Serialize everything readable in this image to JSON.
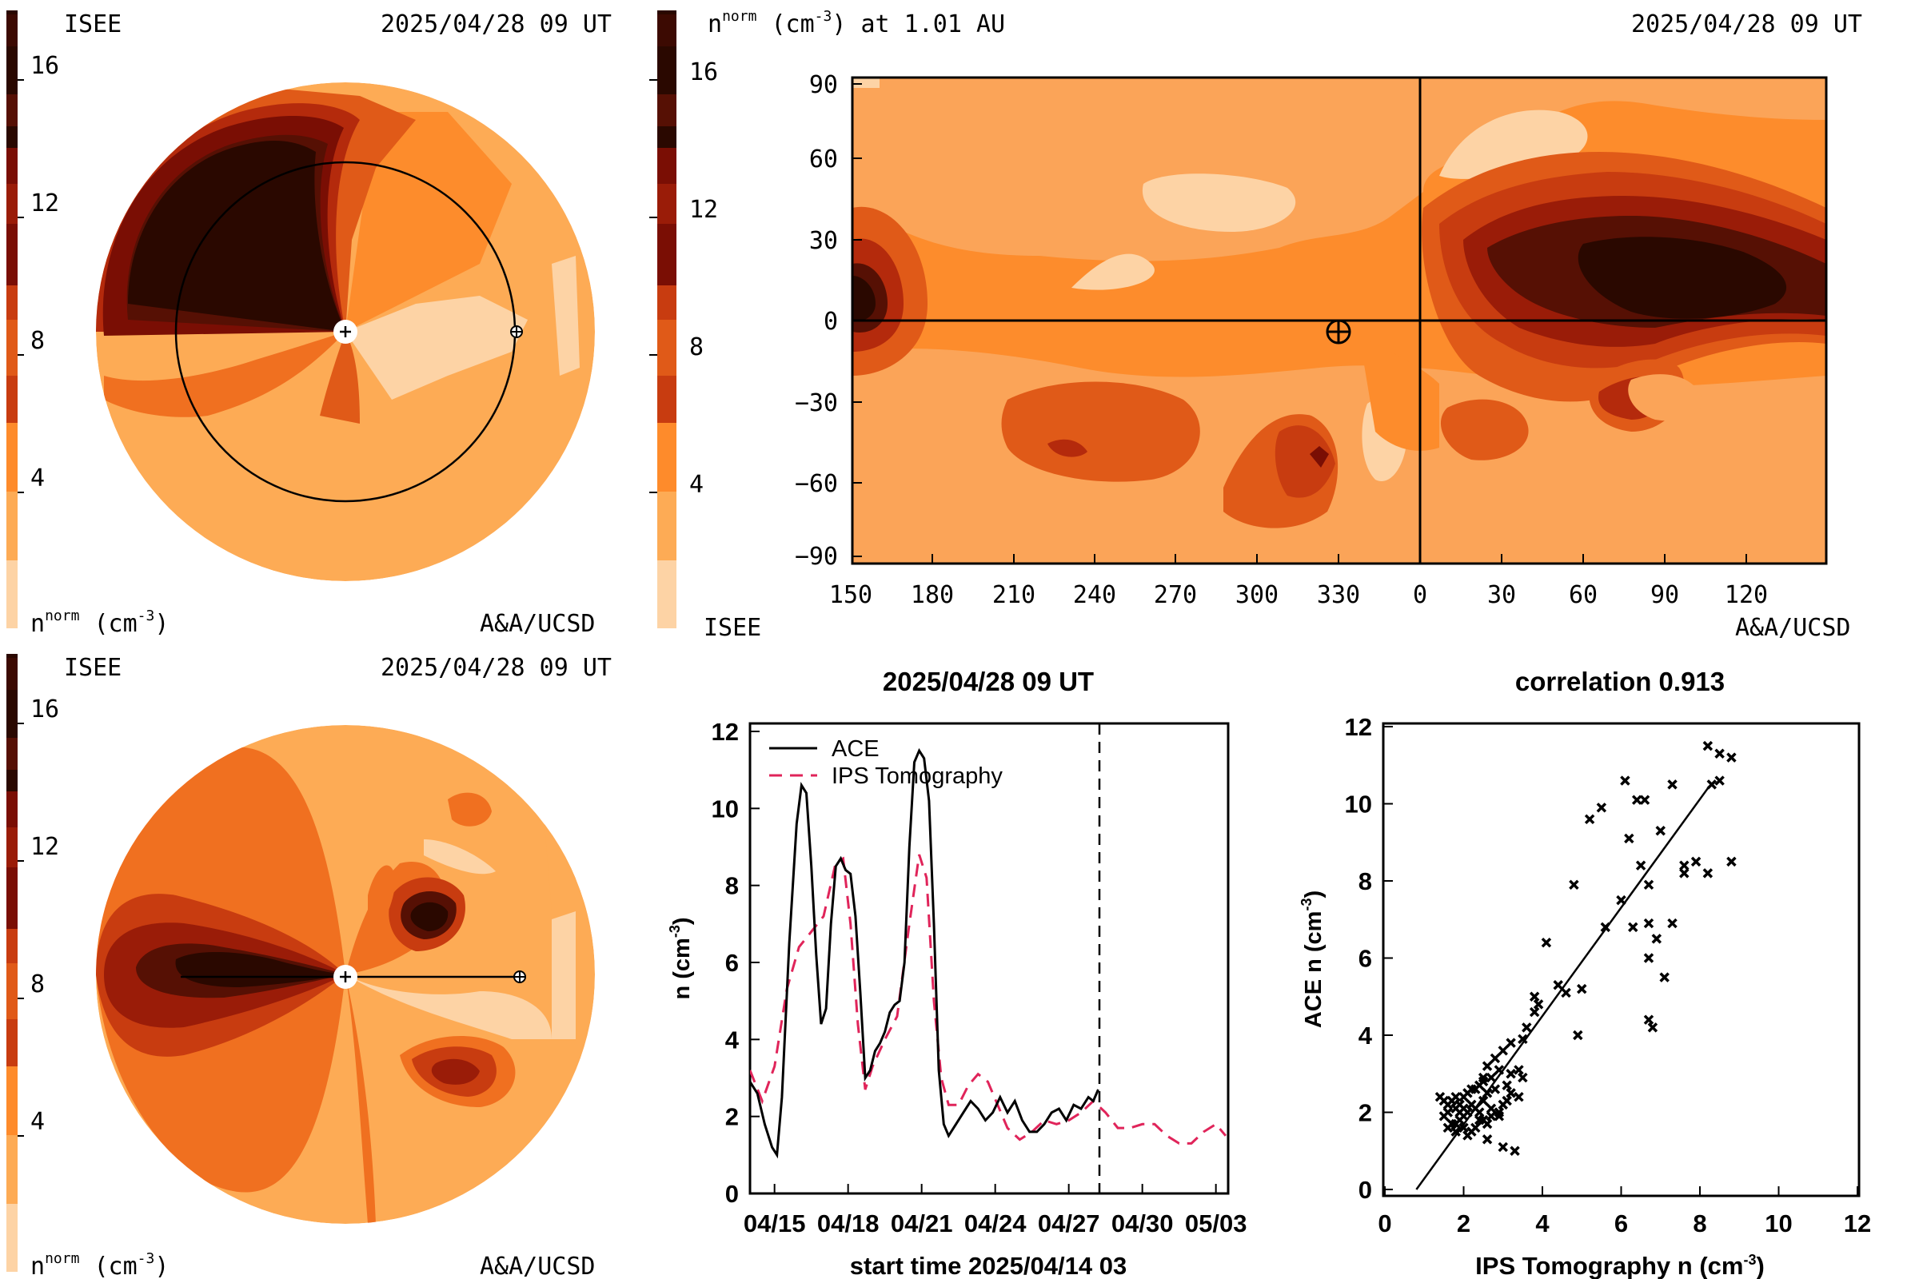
{
  "colors": {
    "scale": [
      "#fdd3a5",
      "#fdab55",
      "#fe9b38",
      "#fe8b2b",
      "#f07020",
      "#e05a18",
      "#c83c10",
      "#b42a0c",
      "#9a1c08",
      "#7a0e04",
      "#561004",
      "#3c0a02",
      "#2a0800"
    ],
    "pale": "#fdd3a5",
    "light": "#fba458",
    "mid": "#fd8c2c",
    "sun": "#ffffff",
    "ace_line": "#000000",
    "ips_line": "#e0245a"
  },
  "panels": {
    "ecliptic": {
      "org_label": "ISEE",
      "timestamp": "2025/04/28 09 UT",
      "colorbar_ticks": [
        "16",
        "12",
        "8",
        "4"
      ],
      "unit_prefix": "n",
      "unit_sup": "norm",
      "unit_suffix": " (cm",
      "unit_exp": "-3",
      "unit_close": ")",
      "credit": "A&A/UCSD"
    },
    "map": {
      "header_prefix": "n",
      "header_sup": "norm",
      "header_mid": " (cm",
      "header_exp": "-3",
      "header_suffix": ") at 1.01 AU",
      "timestamp": "2025/04/28 09 UT",
      "colorbar_ticks": [
        "16",
        "12",
        "8",
        "4"
      ],
      "y_ticks": [
        "90",
        "60",
        "30",
        "0",
        "−30",
        "−60",
        "−90"
      ],
      "x_ticks": [
        "150",
        "180",
        "210",
        "240",
        "270",
        "300",
        "330",
        "0",
        "30",
        "60",
        "90",
        "120"
      ],
      "org_label": "ISEE",
      "credit": "A&A/UCSD"
    },
    "meridional": {
      "org_label": "ISEE",
      "timestamp": "2025/04/28 09 UT",
      "colorbar_ticks": [
        "16",
        "12",
        "8",
        "4"
      ],
      "unit_prefix": "n",
      "unit_sup": "norm",
      "unit_suffix": " (cm",
      "unit_exp": "-3",
      "unit_close": ")",
      "credit": "A&A/UCSD"
    }
  },
  "chart_data": [
    {
      "type": "line",
      "title": "2025/04/28 09 UT",
      "xlabel": "start time 2025/04/14 03",
      "ylabel_prefix": "n (cm",
      "ylabel_exp": "-3",
      "ylabel_suffix": ")",
      "x_tick_labels": [
        "04/15",
        "04/18",
        "04/21",
        "04/24",
        "04/27",
        "04/30",
        "05/03"
      ],
      "x_tick_days": [
        1,
        4,
        7,
        10,
        13,
        16,
        19
      ],
      "xlim_days": [
        0,
        19.5
      ],
      "ylim": [
        0,
        12
      ],
      "y_ticks": [
        0,
        2,
        4,
        6,
        8,
        10,
        12
      ],
      "now_marker_day": 14.25,
      "series": [
        {
          "name": "ACE",
          "style": "solid",
          "points": [
            [
              0.0,
              2.9
            ],
            [
              0.3,
              2.6
            ],
            [
              0.6,
              1.8
            ],
            [
              0.9,
              1.2
            ],
            [
              1.1,
              1.0
            ],
            [
              1.3,
              2.5
            ],
            [
              1.6,
              6.5
            ],
            [
              1.9,
              9.6
            ],
            [
              2.1,
              10.6
            ],
            [
              2.3,
              10.4
            ],
            [
              2.5,
              8.5
            ],
            [
              2.7,
              6.2
            ],
            [
              2.9,
              4.4
            ],
            [
              3.1,
              4.8
            ],
            [
              3.3,
              7.0
            ],
            [
              3.5,
              8.5
            ],
            [
              3.7,
              8.7
            ],
            [
              3.9,
              8.4
            ],
            [
              4.1,
              8.3
            ],
            [
              4.3,
              7.2
            ],
            [
              4.5,
              5.2
            ],
            [
              4.7,
              3.0
            ],
            [
              4.9,
              3.2
            ],
            [
              5.1,
              3.7
            ],
            [
              5.3,
              3.9
            ],
            [
              5.5,
              4.2
            ],
            [
              5.7,
              4.7
            ],
            [
              5.9,
              4.9
            ],
            [
              6.1,
              5.0
            ],
            [
              6.3,
              6.0
            ],
            [
              6.5,
              9.0
            ],
            [
              6.7,
              11.2
            ],
            [
              6.9,
              11.5
            ],
            [
              7.1,
              11.3
            ],
            [
              7.3,
              10.2
            ],
            [
              7.5,
              7.0
            ],
            [
              7.7,
              3.2
            ],
            [
              7.9,
              1.8
            ],
            [
              8.1,
              1.5
            ],
            [
              8.4,
              1.8
            ],
            [
              8.7,
              2.1
            ],
            [
              9.0,
              2.4
            ],
            [
              9.3,
              2.2
            ],
            [
              9.6,
              1.9
            ],
            [
              9.9,
              2.1
            ],
            [
              10.2,
              2.5
            ],
            [
              10.5,
              2.1
            ],
            [
              10.8,
              2.4
            ],
            [
              11.1,
              1.9
            ],
            [
              11.4,
              1.6
            ],
            [
              11.7,
              1.6
            ],
            [
              12.0,
              1.8
            ],
            [
              12.3,
              2.1
            ],
            [
              12.6,
              2.2
            ],
            [
              12.9,
              1.9
            ],
            [
              13.2,
              2.3
            ],
            [
              13.5,
              2.2
            ],
            [
              13.8,
              2.5
            ],
            [
              14.0,
              2.4
            ],
            [
              14.2,
              2.7
            ]
          ]
        },
        {
          "name": "IPS Tomography",
          "style": "dashed",
          "points": [
            [
              0.0,
              3.2
            ],
            [
              0.5,
              2.4
            ],
            [
              1.0,
              3.3
            ],
            [
              1.5,
              5.3
            ],
            [
              2.0,
              6.4
            ],
            [
              2.5,
              6.8
            ],
            [
              3.0,
              7.2
            ],
            [
              3.5,
              8.6
            ],
            [
              3.8,
              8.7
            ],
            [
              4.1,
              7.0
            ],
            [
              4.4,
              4.4
            ],
            [
              4.7,
              2.7
            ],
            [
              5.0,
              3.3
            ],
            [
              5.5,
              4.0
            ],
            [
              6.0,
              4.6
            ],
            [
              6.5,
              7.0
            ],
            [
              6.9,
              8.8
            ],
            [
              7.2,
              8.2
            ],
            [
              7.5,
              5.0
            ],
            [
              7.8,
              3.0
            ],
            [
              8.1,
              2.3
            ],
            [
              8.5,
              2.3
            ],
            [
              8.9,
              2.8
            ],
            [
              9.3,
              3.1
            ],
            [
              9.7,
              2.9
            ],
            [
              10.1,
              2.3
            ],
            [
              10.5,
              1.7
            ],
            [
              11.0,
              1.4
            ],
            [
              11.5,
              1.6
            ],
            [
              12.0,
              1.9
            ],
            [
              12.5,
              1.8
            ],
            [
              13.0,
              1.9
            ],
            [
              13.5,
              2.1
            ],
            [
              14.0,
              2.4
            ],
            [
              14.5,
              2.1
            ],
            [
              15.0,
              1.7
            ],
            [
              15.5,
              1.7
            ],
            [
              16.0,
              1.8
            ],
            [
              16.5,
              1.8
            ],
            [
              17.0,
              1.5
            ],
            [
              17.5,
              1.3
            ],
            [
              18.0,
              1.3
            ],
            [
              18.5,
              1.6
            ],
            [
              19.0,
              1.8
            ],
            [
              19.4,
              1.5
            ]
          ]
        }
      ]
    },
    {
      "type": "scatter",
      "title": "correlation 0.913",
      "xlabel_prefix": "IPS Tomography n (cm",
      "xlabel_exp": "-3",
      "xlabel_suffix": ")",
      "ylabel_prefix": "ACE n (cm",
      "ylabel_exp": "-3",
      "ylabel_suffix": ")",
      "xlim": [
        0,
        12
      ],
      "ylim": [
        0,
        12
      ],
      "x_ticks": [
        0,
        2,
        4,
        6,
        8,
        10,
        12
      ],
      "y_ticks": [
        0,
        2,
        4,
        6,
        8,
        10,
        12
      ],
      "fit_line": [
        [
          0.8,
          0
        ],
        [
          8.2,
          10.4
        ]
      ],
      "points": [
        [
          8.2,
          11.5
        ],
        [
          8.5,
          11.3
        ],
        [
          8.8,
          11.2
        ],
        [
          8.3,
          10.5
        ],
        [
          8.5,
          10.6
        ],
        [
          6.1,
          10.6
        ],
        [
          6.6,
          10.1
        ],
        [
          6.4,
          10.1
        ],
        [
          7.3,
          10.5
        ],
        [
          5.5,
          9.9
        ],
        [
          5.2,
          9.6
        ],
        [
          6.2,
          9.1
        ],
        [
          7.0,
          9.3
        ],
        [
          7.6,
          8.4
        ],
        [
          8.2,
          8.2
        ],
        [
          7.6,
          8.2
        ],
        [
          7.9,
          8.5
        ],
        [
          8.8,
          8.5
        ],
        [
          6.5,
          8.4
        ],
        [
          6.7,
          7.9
        ],
        [
          4.8,
          7.9
        ],
        [
          6.0,
          7.5
        ],
        [
          5.6,
          6.8
        ],
        [
          6.7,
          6.9
        ],
        [
          6.9,
          6.5
        ],
        [
          7.3,
          6.9
        ],
        [
          6.3,
          6.8
        ],
        [
          6.7,
          6.0
        ],
        [
          4.1,
          6.4
        ],
        [
          7.1,
          5.5
        ],
        [
          6.8,
          4.2
        ],
        [
          6.7,
          4.4
        ],
        [
          3.8,
          5.0
        ],
        [
          4.4,
          5.3
        ],
        [
          4.6,
          5.1
        ],
        [
          5.0,
          5.2
        ],
        [
          4.9,
          4.0
        ],
        [
          3.5,
          3.9
        ],
        [
          3.8,
          4.6
        ],
        [
          3.9,
          4.8
        ],
        [
          3.6,
          4.2
        ],
        [
          3.2,
          3.8
        ],
        [
          3.0,
          3.6
        ],
        [
          2.8,
          3.4
        ],
        [
          2.6,
          3.2
        ],
        [
          3.2,
          3.0
        ],
        [
          3.5,
          2.9
        ],
        [
          3.4,
          2.4
        ],
        [
          3.2,
          2.5
        ],
        [
          2.7,
          2.9
        ],
        [
          2.5,
          2.8
        ],
        [
          2.3,
          2.6
        ],
        [
          2.1,
          2.5
        ],
        [
          2.0,
          2.4
        ],
        [
          1.9,
          2.2
        ],
        [
          1.8,
          2.1
        ],
        [
          1.6,
          2.0
        ],
        [
          1.5,
          2.3
        ],
        [
          1.4,
          2.4
        ],
        [
          1.5,
          1.9
        ],
        [
          1.6,
          1.6
        ],
        [
          1.8,
          1.7
        ],
        [
          2.0,
          1.9
        ],
        [
          2.1,
          2.0
        ],
        [
          2.2,
          2.2
        ],
        [
          2.3,
          2.1
        ],
        [
          2.4,
          2.0
        ],
        [
          2.5,
          1.8
        ],
        [
          2.6,
          1.7
        ],
        [
          2.7,
          1.9
        ],
        [
          2.9,
          2.0
        ],
        [
          3.0,
          2.2
        ],
        [
          3.1,
          2.3
        ],
        [
          2.8,
          2.6
        ],
        [
          2.6,
          2.5
        ],
        [
          2.4,
          2.7
        ],
        [
          2.2,
          1.5
        ],
        [
          2.0,
          1.6
        ],
        [
          1.8,
          1.5
        ],
        [
          1.7,
          1.7
        ],
        [
          1.9,
          1.8
        ],
        [
          2.1,
          1.4
        ],
        [
          2.3,
          1.6
        ],
        [
          1.9,
          2.0
        ],
        [
          1.7,
          2.3
        ],
        [
          2.2,
          2.6
        ],
        [
          2.5,
          2.3
        ],
        [
          2.9,
          1.9
        ],
        [
          3.3,
          1.0
        ],
        [
          3.0,
          1.1
        ],
        [
          2.6,
          1.3
        ],
        [
          2.4,
          1.8
        ],
        [
          2.0,
          2.1
        ],
        [
          1.8,
          2.4
        ],
        [
          1.6,
          2.2
        ],
        [
          2.7,
          2.1
        ],
        [
          3.1,
          2.7
        ],
        [
          3.4,
          3.1
        ],
        [
          2.9,
          3.1
        ],
        [
          2.5,
          2.9
        ]
      ]
    }
  ]
}
